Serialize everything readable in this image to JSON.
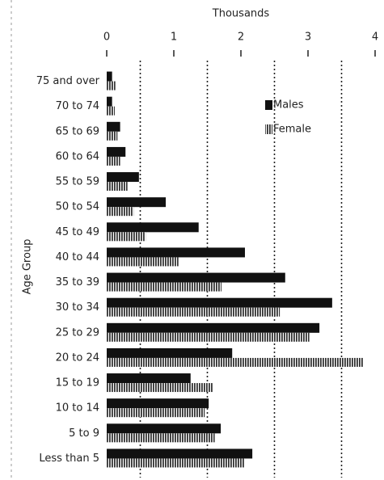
{
  "chart_data": {
    "type": "hbar",
    "xlabel": "Thousands",
    "ylabel": "Age Group",
    "categories": [
      "75 and over",
      "70 to 74",
      "65 to 69",
      "60 to 64",
      "55 to 59",
      "50 to 54",
      "45 to 49",
      "40 to 44",
      "35 to 39",
      "30 to 34",
      "25 to 29",
      "20 to 24",
      "15 to 19",
      "10 to 14",
      "5 to 9",
      "Less than 5"
    ],
    "series": [
      {
        "name": "Males",
        "color": "#111111",
        "values": [
          0.08,
          0.08,
          0.2,
          0.28,
          0.48,
          0.88,
          1.37,
          2.06,
          2.66,
          3.36,
          3.17,
          1.87,
          1.25,
          1.52,
          1.7,
          2.17
        ]
      },
      {
        "name": "Female",
        "color": "#333333",
        "pattern": "vertical-hatch",
        "values": [
          0.13,
          0.12,
          0.16,
          0.2,
          0.31,
          0.4,
          0.58,
          1.07,
          1.71,
          2.58,
          3.02,
          3.83,
          1.59,
          1.46,
          1.61,
          2.06
        ]
      }
    ],
    "xlim": [
      0,
      4
    ],
    "xticks": [
      0,
      1,
      2,
      3,
      4
    ],
    "xgrid": [
      0.5,
      1.5,
      2.5,
      3.5
    ],
    "legend": "upper right"
  }
}
